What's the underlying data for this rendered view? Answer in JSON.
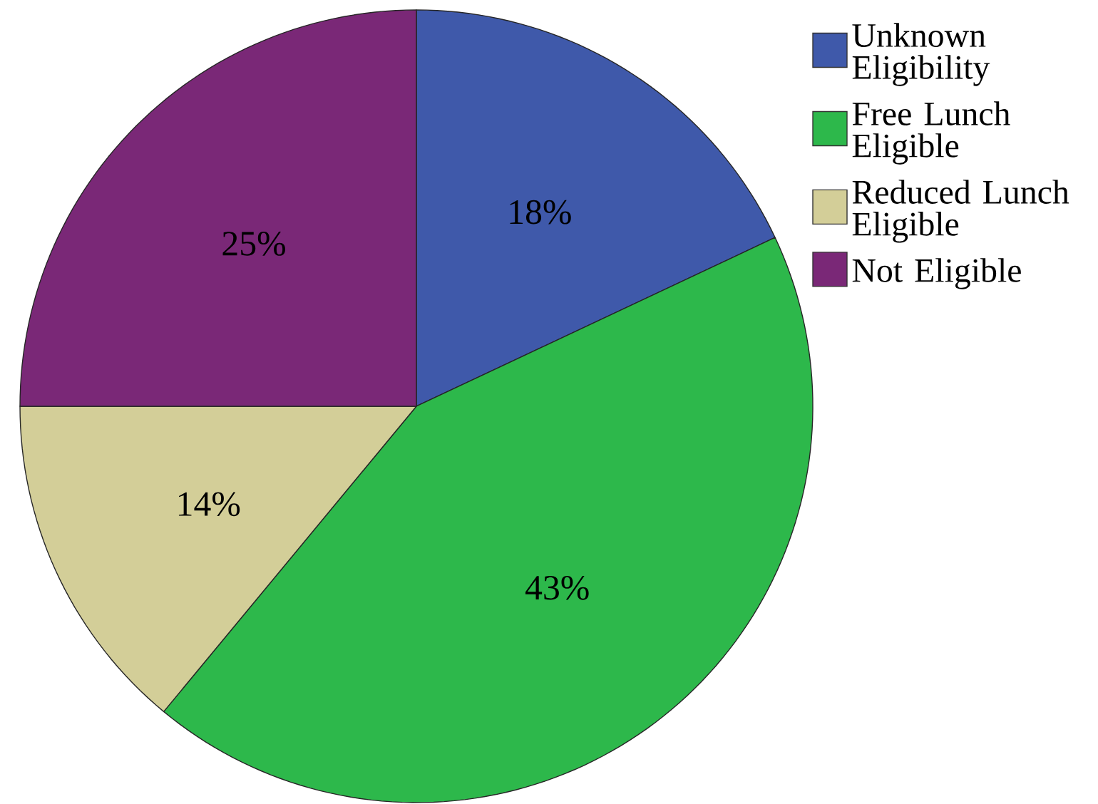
{
  "chart_data": {
    "type": "pie",
    "categories": [
      "Unknown Eligibility",
      "Free Lunch Eligible",
      "Reduced Lunch Eligible",
      "Not Eligible"
    ],
    "values": [
      18,
      43,
      14,
      25
    ],
    "colors": [
      "#3f59aa",
      "#2db84b",
      "#d3ce98",
      "#7a2877"
    ],
    "value_labels": [
      "18%",
      "43%",
      "14%",
      "25%"
    ],
    "legend": "top right"
  }
}
